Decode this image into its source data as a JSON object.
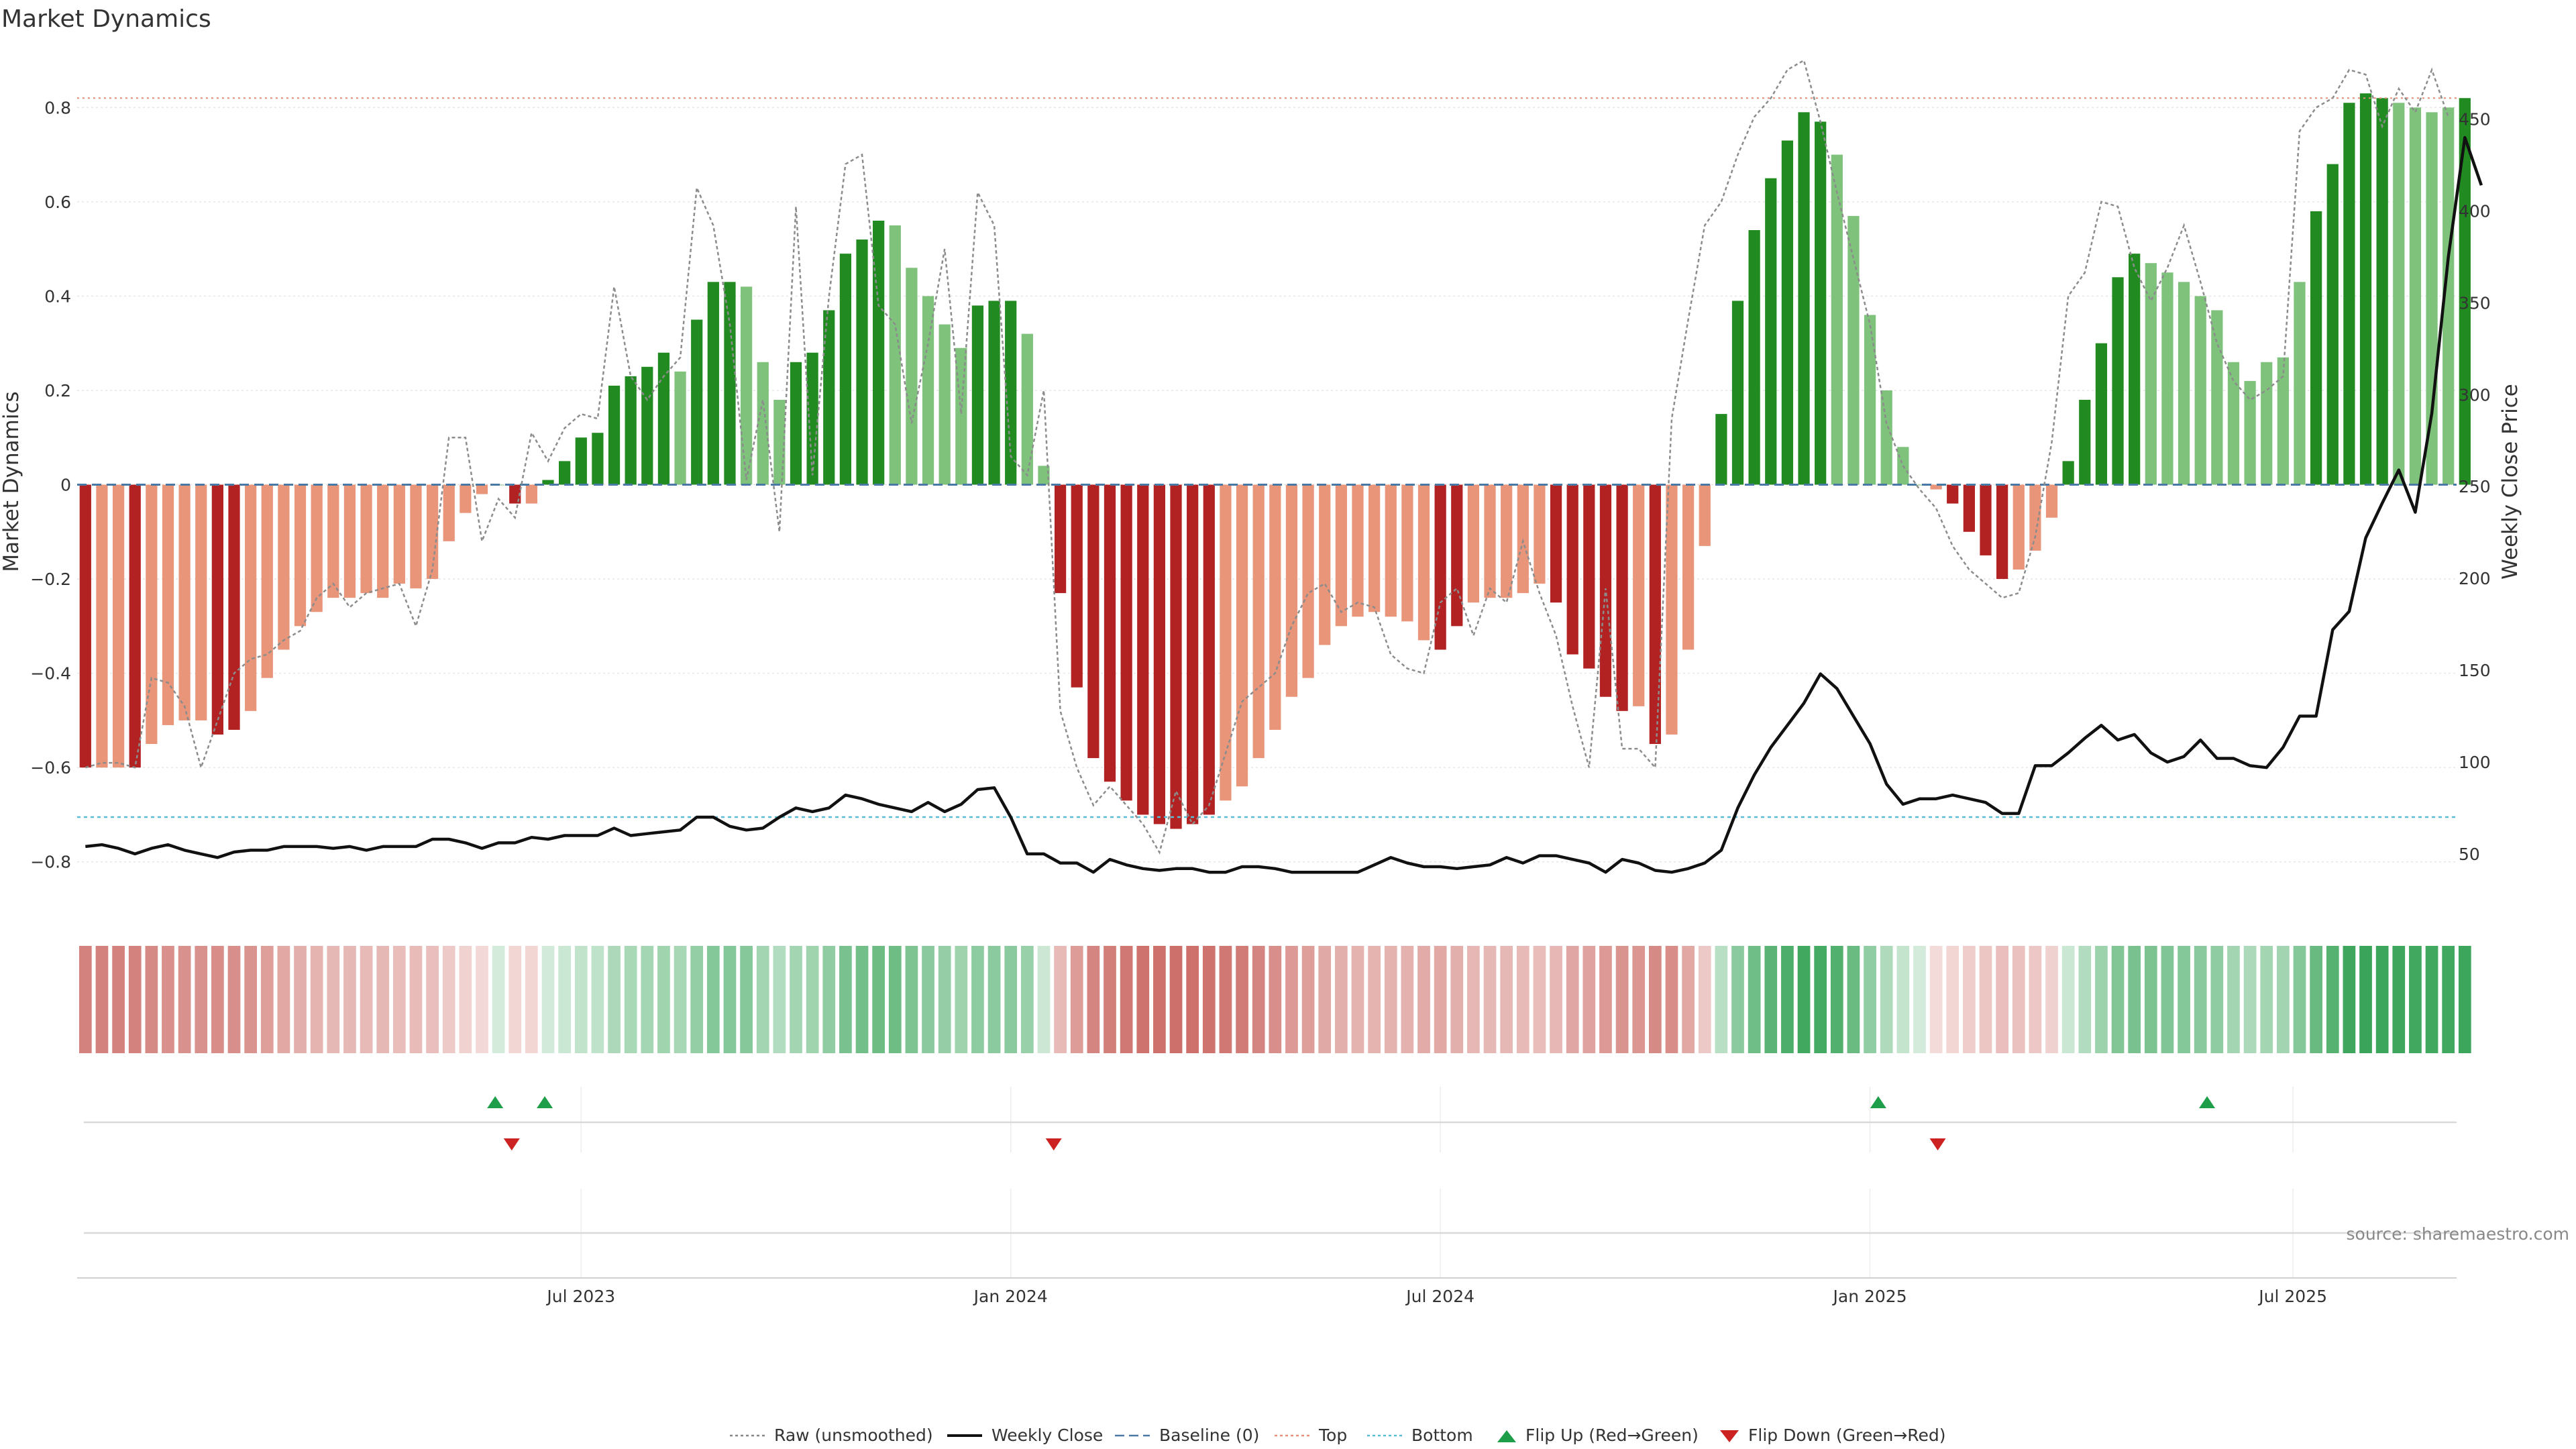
{
  "chart_data": {
    "type": "bar",
    "title": "Market Dynamics",
    "ylabel_left": "Market Dynamics",
    "ylabel_right": "Weekly Close Price",
    "y_left_ticks": [
      "−0.8",
      "−0.6",
      "−0.4",
      "−0.2",
      "0",
      "0.2",
      "0.4",
      "0.6",
      "0.8"
    ],
    "y_left_tick_values": [
      -0.8,
      -0.6,
      -0.4,
      -0.2,
      0,
      0.2,
      0.4,
      0.6,
      0.8
    ],
    "y_right_ticks": [
      "50",
      "100",
      "150",
      "200",
      "250",
      "300",
      "350",
      "400",
      "450"
    ],
    "y_right_tick_values": [
      50,
      100,
      150,
      200,
      250,
      300,
      350,
      400,
      450
    ],
    "ylim_left": [
      -0.9,
      0.9
    ],
    "ylim_right": [
      20,
      482
    ],
    "x_ticks": [
      "Jul 2023",
      "Jan 2024",
      "Jul 2024",
      "Jan 2025",
      "Jul 2025"
    ],
    "x_tick_weeks": [
      30.5,
      56.5,
      82.5,
      108.5,
      134.1
    ],
    "weeks": 144,
    "top_level": 0.82,
    "bottom_level": -0.705,
    "baseline": 0,
    "momentum": [
      -0.6,
      -0.6,
      -0.6,
      -0.6,
      -0.55,
      -0.51,
      -0.5,
      -0.5,
      -0.53,
      -0.52,
      -0.48,
      -0.41,
      -0.35,
      -0.3,
      -0.27,
      -0.24,
      -0.24,
      -0.23,
      -0.24,
      -0.21,
      -0.22,
      -0.2,
      -0.12,
      -0.06,
      -0.02,
      0,
      -0.04,
      -0.04,
      0.01,
      0.05,
      0.1,
      0.11,
      0.21,
      0.23,
      0.25,
      0.28,
      0.24,
      0.35,
      0.43,
      0.43,
      0.42,
      0.26,
      0.18,
      0.26,
      0.28,
      0.37,
      0.49,
      0.52,
      0.56,
      0.55,
      0.46,
      0.4,
      0.34,
      0.29,
      0.38,
      0.39,
      0.39,
      0.32,
      0.04,
      -0.23,
      -0.43,
      -0.58,
      -0.63,
      -0.67,
      -0.7,
      -0.72,
      -0.73,
      -0.72,
      -0.7,
      -0.67,
      -0.64,
      -0.58,
      -0.52,
      -0.45,
      -0.41,
      -0.34,
      -0.3,
      -0.28,
      -0.27,
      -0.28,
      -0.29,
      -0.33,
      -0.35,
      -0.3,
      -0.25,
      -0.24,
      -0.24,
      -0.23,
      -0.21,
      -0.25,
      -0.36,
      -0.39,
      -0.45,
      -0.48,
      -0.47,
      -0.55,
      -0.53,
      -0.35,
      -0.13,
      0.15,
      0.39,
      0.54,
      0.65,
      0.73,
      0.79,
      0.77,
      0.7,
      0.57,
      0.36,
      0.2,
      0.08,
      0,
      -0.01,
      -0.04,
      -0.1,
      -0.15,
      -0.2,
      -0.18,
      -0.14,
      -0.07,
      0.05,
      0.18,
      0.3,
      0.44,
      0.49,
      0.47,
      0.45,
      0.43,
      0.4,
      0.37,
      0.26,
      0.22,
      0.26,
      0.27,
      0.43,
      0.58,
      0.68,
      0.81,
      0.83,
      0.82,
      0.81,
      0.8,
      0.79,
      0.8,
      0.82
    ],
    "momentum_strong": [
      1,
      0,
      0,
      1,
      0,
      0,
      0,
      0,
      1,
      1,
      0,
      0,
      0,
      0,
      0,
      0,
      0,
      0,
      0,
      0,
      0,
      0,
      0,
      0,
      0,
      0,
      1,
      0,
      1,
      1,
      1,
      1,
      1,
      1,
      1,
      1,
      0,
      1,
      1,
      1,
      0,
      0,
      0,
      1,
      1,
      1,
      1,
      1,
      1,
      0,
      0,
      0,
      0,
      0,
      1,
      1,
      1,
      0,
      0,
      1,
      1,
      1,
      1,
      1,
      1,
      1,
      1,
      1,
      1,
      0,
      0,
      0,
      0,
      0,
      0,
      0,
      0,
      0,
      0,
      0,
      0,
      0,
      1,
      1,
      0,
      0,
      0,
      0,
      0,
      1,
      1,
      1,
      1,
      1,
      0,
      1,
      0,
      0,
      0,
      1,
      1,
      1,
      1,
      1,
      1,
      1,
      0,
      0,
      0,
      0,
      0,
      0,
      0,
      1,
      1,
      1,
      1,
      0,
      0,
      0,
      1,
      1,
      1,
      1,
      1,
      0,
      0,
      0,
      0,
      0,
      0,
      0,
      0,
      0,
      0,
      1,
      1,
      1,
      1,
      1,
      0,
      0,
      0,
      0,
      1
    ],
    "raw": [
      -0.6,
      -0.59,
      -0.59,
      -0.6,
      -0.41,
      -0.42,
      -0.47,
      -0.6,
      -0.5,
      -0.4,
      -0.37,
      -0.36,
      -0.33,
      -0.31,
      -0.24,
      -0.21,
      -0.26,
      -0.23,
      -0.22,
      -0.21,
      -0.3,
      -0.18,
      0.1,
      0.1,
      -0.12,
      -0.03,
      -0.07,
      0.11,
      0.05,
      0.12,
      0.15,
      0.14,
      0.42,
      0.23,
      0.18,
      0.23,
      0.27,
      0.63,
      0.55,
      0.34,
      0.01,
      0.18,
      -0.1,
      0.59,
      0.02,
      0.4,
      0.68,
      0.7,
      0.38,
      0.34,
      0.13,
      0.3,
      0.5,
      0.15,
      0.62,
      0.55,
      0.06,
      0.02,
      0.2,
      -0.48,
      -0.6,
      -0.68,
      -0.64,
      -0.68,
      -0.72,
      -0.78,
      -0.65,
      -0.72,
      -0.68,
      -0.57,
      -0.46,
      -0.43,
      -0.4,
      -0.3,
      -0.23,
      -0.21,
      -0.27,
      -0.25,
      -0.26,
      -0.36,
      -0.39,
      -0.4,
      -0.25,
      -0.22,
      -0.32,
      -0.22,
      -0.25,
      -0.12,
      -0.23,
      -0.32,
      -0.47,
      -0.6,
      -0.22,
      -0.56,
      -0.56,
      -0.6,
      0.14,
      0.35,
      0.55,
      0.6,
      0.7,
      0.78,
      0.82,
      0.88,
      0.9,
      0.77,
      0.62,
      0.48,
      0.34,
      0.13,
      0.04,
      -0.01,
      -0.05,
      -0.13,
      -0.18,
      -0.21,
      -0.24,
      -0.23,
      -0.11,
      0.09,
      0.4,
      0.45,
      0.6,
      0.59,
      0.46,
      0.39,
      0.46,
      0.55,
      0.43,
      0.3,
      0.22,
      0.18,
      0.2,
      0.23,
      0.75,
      0.8,
      0.82,
      0.88,
      0.87,
      0.76,
      0.84,
      0.79,
      0.88,
      0.78
    ],
    "weekly_close": [
      54,
      55,
      53,
      50,
      53,
      55,
      52,
      50,
      48,
      51,
      52,
      52,
      54,
      54,
      54,
      53,
      54,
      52,
      54,
      54,
      54,
      58,
      58,
      56,
      53,
      56,
      56,
      59,
      58,
      60,
      60,
      60,
      64,
      60,
      61,
      62,
      63,
      70,
      70,
      65,
      63,
      64,
      70,
      75,
      73,
      75,
      82,
      80,
      77,
      75,
      73,
      78,
      73,
      77,
      85,
      86,
      70,
      50,
      50,
      45,
      45,
      40,
      47,
      44,
      42,
      41,
      42,
      42,
      40,
      40,
      43,
      43,
      42,
      40,
      40,
      40,
      40,
      40,
      44,
      48,
      45,
      43,
      43,
      42,
      43,
      44,
      48,
      45,
      49,
      49,
      47,
      45,
      40,
      47,
      45,
      41,
      40,
      42,
      45,
      52,
      75,
      93,
      108,
      120,
      132,
      148,
      140,
      125,
      110,
      88,
      77,
      80,
      80,
      82,
      80,
      78,
      72,
      72,
      98,
      98,
      105,
      113,
      120,
      112,
      115,
      105,
      100,
      103,
      112,
      102,
      102,
      98,
      97,
      108,
      125,
      125,
      172,
      182,
      222,
      241,
      259,
      236,
      290,
      375,
      440,
      414
    ]
  },
  "legend": [
    {
      "name": "Raw (unsmoothed)",
      "icon": "dotted-line-icon",
      "color": "#888888"
    },
    {
      "name": "Weekly Close",
      "icon": "solid-line-icon",
      "color": "#111111"
    },
    {
      "name": "Baseline (0)",
      "icon": "dashed-line-icon",
      "color": "#4a79a5"
    },
    {
      "name": "Top",
      "icon": "dotted-line-icon",
      "color": "#e58f77"
    },
    {
      "name": "Bottom",
      "icon": "dotted-line-icon",
      "color": "#5bbcd6"
    },
    {
      "name": "Flip Up (Red→Green)",
      "icon": "triangle-up-icon",
      "color": "#1f9e4a"
    },
    {
      "name": "Flip Down (Green→Red)",
      "icon": "triangle-down-icon",
      "color": "#cc2222"
    }
  ],
  "flip_up_weeks": [
    25.3,
    28.3,
    109.0,
    128.9
  ],
  "flip_down_weeks": [
    26.3,
    59.1,
    112.6
  ],
  "source": "source: sharemaestro.com",
  "colors": {
    "strong_green": "#218b21",
    "light_green": "#7fc27c",
    "strong_red": "#b22222",
    "light_red": "#e8957a",
    "heat_green": "#3aa55a",
    "heat_red": "#c8605a"
  }
}
